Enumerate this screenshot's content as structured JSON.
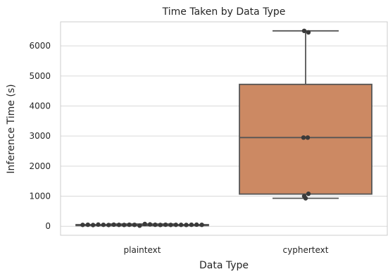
{
  "chart_data": {
    "type": "box",
    "title": "Time Taken by Data Type",
    "xlabel": "Data Type",
    "ylabel": "Inference Time (s)",
    "ylim": [
      -300,
      6800
    ],
    "yticks": [
      0,
      1000,
      2000,
      3000,
      4000,
      5000,
      6000
    ],
    "grid": true,
    "categories": [
      "plaintext",
      "cyphertext"
    ],
    "boxes": [
      {
        "category": "plaintext",
        "whisker_low": 20,
        "q1": 35,
        "median": 45,
        "q3": 55,
        "whisker_high": 75,
        "color": "#4c72b0",
        "points": [
          45,
          50,
          40,
          55,
          48,
          42,
          52,
          46,
          44,
          50,
          47,
          20,
          75,
          60,
          49,
          43,
          51,
          45,
          48,
          46,
          44,
          50,
          52,
          47
        ]
      },
      {
        "category": "cyphertext",
        "whisker_low": 930,
        "q1": 1070,
        "median": 2950,
        "q3": 4720,
        "whisker_high": 6500,
        "color": "#cc8963",
        "points": [
          6500,
          6450,
          2950,
          2950,
          1000,
          1080,
          930
        ]
      }
    ]
  }
}
